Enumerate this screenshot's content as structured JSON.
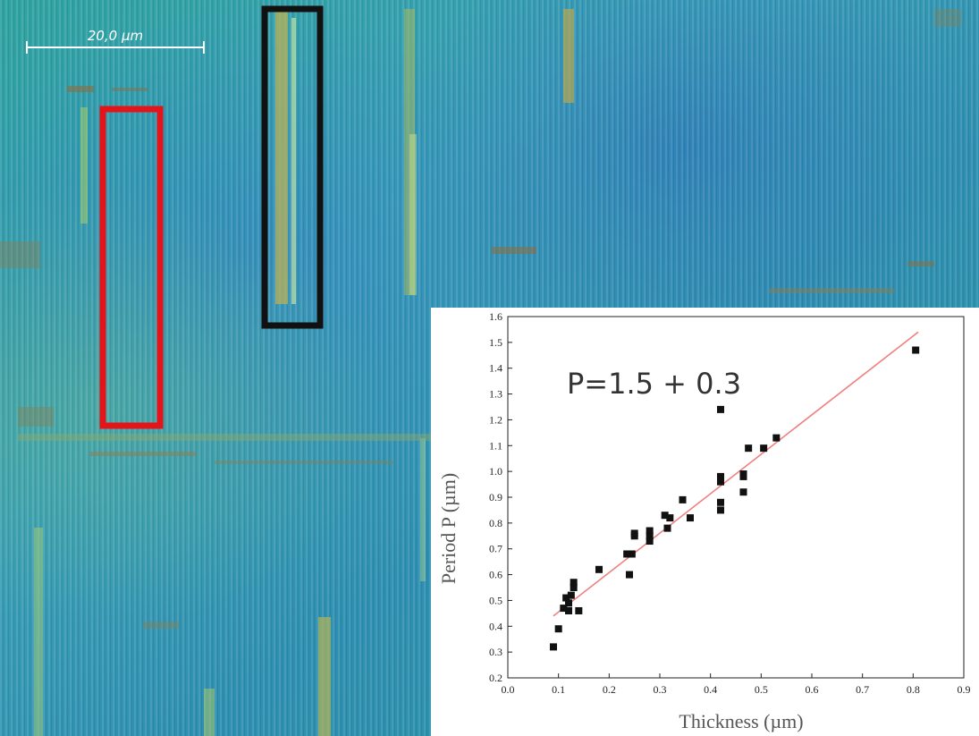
{
  "image": {
    "scale_bar_label": "20,0 µm",
    "highlight_boxes": [
      {
        "color": "#e3151a"
      },
      {
        "color": "#111111"
      }
    ]
  },
  "inset": {
    "equation": "P=1.5 + 0.3"
  },
  "chart_data": {
    "type": "scatter",
    "title": "",
    "xlabel": "Thickness (µm)",
    "ylabel": "Period P (µm)",
    "xlim": [
      0.0,
      0.9
    ],
    "ylim": [
      0.2,
      1.6
    ],
    "xticks": [
      "0.0",
      "0.1",
      "0.2",
      "0.3",
      "0.4",
      "0.5",
      "0.6",
      "0.7",
      "0.8",
      "0.9"
    ],
    "yticks": [
      "0.2",
      "0.3",
      "0.4",
      "0.5",
      "0.6",
      "0.7",
      "0.8",
      "0.9",
      "1.0",
      "1.1",
      "1.2",
      "1.3",
      "1.4",
      "1.5",
      "1.6"
    ],
    "grid": false,
    "marker_color": "#111111",
    "fit_color": "#f08080",
    "points": [
      {
        "x": 0.09,
        "y": 0.32
      },
      {
        "x": 0.1,
        "y": 0.39
      },
      {
        "x": 0.11,
        "y": 0.47
      },
      {
        "x": 0.115,
        "y": 0.51
      },
      {
        "x": 0.12,
        "y": 0.46
      },
      {
        "x": 0.12,
        "y": 0.49
      },
      {
        "x": 0.125,
        "y": 0.52
      },
      {
        "x": 0.13,
        "y": 0.55
      },
      {
        "x": 0.13,
        "y": 0.57
      },
      {
        "x": 0.14,
        "y": 0.46
      },
      {
        "x": 0.18,
        "y": 0.62
      },
      {
        "x": 0.235,
        "y": 0.68
      },
      {
        "x": 0.24,
        "y": 0.6
      },
      {
        "x": 0.245,
        "y": 0.68
      },
      {
        "x": 0.25,
        "y": 0.75
      },
      {
        "x": 0.25,
        "y": 0.76
      },
      {
        "x": 0.28,
        "y": 0.73
      },
      {
        "x": 0.28,
        "y": 0.75
      },
      {
        "x": 0.28,
        "y": 0.77
      },
      {
        "x": 0.31,
        "y": 0.83
      },
      {
        "x": 0.315,
        "y": 0.78
      },
      {
        "x": 0.32,
        "y": 0.82
      },
      {
        "x": 0.345,
        "y": 0.89
      },
      {
        "x": 0.36,
        "y": 0.82
      },
      {
        "x": 0.42,
        "y": 1.24
      },
      {
        "x": 0.42,
        "y": 0.96
      },
      {
        "x": 0.42,
        "y": 0.98
      },
      {
        "x": 0.42,
        "y": 0.88
      },
      {
        "x": 0.42,
        "y": 0.85
      },
      {
        "x": 0.465,
        "y": 0.92
      },
      {
        "x": 0.465,
        "y": 0.98
      },
      {
        "x": 0.465,
        "y": 0.99
      },
      {
        "x": 0.475,
        "y": 1.09
      },
      {
        "x": 0.505,
        "y": 1.09
      },
      {
        "x": 0.53,
        "y": 1.13
      },
      {
        "x": 0.805,
        "y": 1.47
      }
    ],
    "fit_line": [
      {
        "x": 0.09,
        "y": 0.44
      },
      {
        "x": 0.81,
        "y": 1.54
      }
    ]
  }
}
